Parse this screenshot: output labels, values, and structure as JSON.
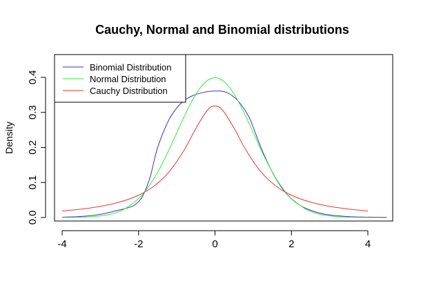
{
  "chart_data": {
    "type": "line",
    "title": "Cauchy, Normal and Binomial distributions",
    "xlabel": "",
    "ylabel": "Density",
    "xlim": [
      -4.2,
      4.65
    ],
    "ylim": [
      -0.01,
      0.465
    ],
    "x_ticks": [
      -4,
      -2,
      0,
      2,
      4
    ],
    "x_tick_labels": [
      "-4",
      "-2",
      "0",
      "2",
      "4"
    ],
    "y_ticks": [
      0.0,
      0.1,
      0.2,
      0.3,
      0.4
    ],
    "y_tick_labels": [
      "0.0",
      "0.1",
      "0.2",
      "0.3",
      "0.4"
    ],
    "legend_position": "top-left",
    "series": [
      {
        "name": "Binomial Distribution",
        "color": "#3333cc",
        "x": [
          -4.0,
          -3.5,
          -3.0,
          -2.6,
          -2.3,
          -2.1,
          -1.9,
          -1.7,
          -1.5,
          -1.2,
          -0.9,
          -0.6,
          -0.3,
          0.0,
          0.3,
          0.6,
          0.9,
          1.2,
          1.5,
          1.8,
          2.1,
          2.4,
          2.8,
          3.2,
          3.6,
          4.0,
          4.5
        ],
        "values": [
          0.001,
          0.003,
          0.009,
          0.019,
          0.027,
          0.036,
          0.06,
          0.115,
          0.2,
          0.28,
          0.325,
          0.347,
          0.357,
          0.361,
          0.357,
          0.333,
          0.284,
          0.2,
          0.129,
          0.077,
          0.044,
          0.025,
          0.011,
          0.005,
          0.002,
          0.001,
          0.0
        ]
      },
      {
        "name": "Normal Distribution",
        "color": "#33ee33",
        "x": [
          -4.0,
          -3.6,
          -3.2,
          -2.8,
          -2.4,
          -2.0,
          -1.8,
          -1.6,
          -1.4,
          -1.2,
          -1.0,
          -0.8,
          -0.6,
          -0.4,
          -0.2,
          0.0,
          0.2,
          0.4,
          0.6,
          0.8,
          1.0,
          1.2,
          1.4,
          1.6,
          1.8,
          2.0,
          2.4,
          2.8,
          3.2,
          3.6,
          4.0
        ],
        "values": [
          0.0001,
          0.0006,
          0.0024,
          0.0079,
          0.0224,
          0.054,
          0.079,
          0.1109,
          0.1497,
          0.1942,
          0.242,
          0.2897,
          0.3332,
          0.3683,
          0.391,
          0.3989,
          0.391,
          0.3683,
          0.3332,
          0.2897,
          0.242,
          0.1942,
          0.1497,
          0.1109,
          0.079,
          0.054,
          0.0224,
          0.0079,
          0.0024,
          0.0006,
          0.0001
        ]
      },
      {
        "name": "Cauchy Distribution",
        "color": "#ee3333",
        "x": [
          -4.0,
          -3.5,
          -3.0,
          -2.5,
          -2.0,
          -1.6,
          -1.2,
          -0.8,
          -0.5,
          -0.2,
          0.0,
          0.2,
          0.5,
          0.8,
          1.2,
          1.6,
          2.0,
          2.5,
          3.0,
          3.5,
          4.0
        ],
        "values": [
          0.0187,
          0.024,
          0.0318,
          0.0439,
          0.0637,
          0.0895,
          0.1305,
          0.1941,
          0.2546,
          0.3061,
          0.3183,
          0.3061,
          0.2546,
          0.1941,
          0.1305,
          0.0895,
          0.0637,
          0.0439,
          0.0318,
          0.024,
          0.0187
        ]
      }
    ]
  }
}
